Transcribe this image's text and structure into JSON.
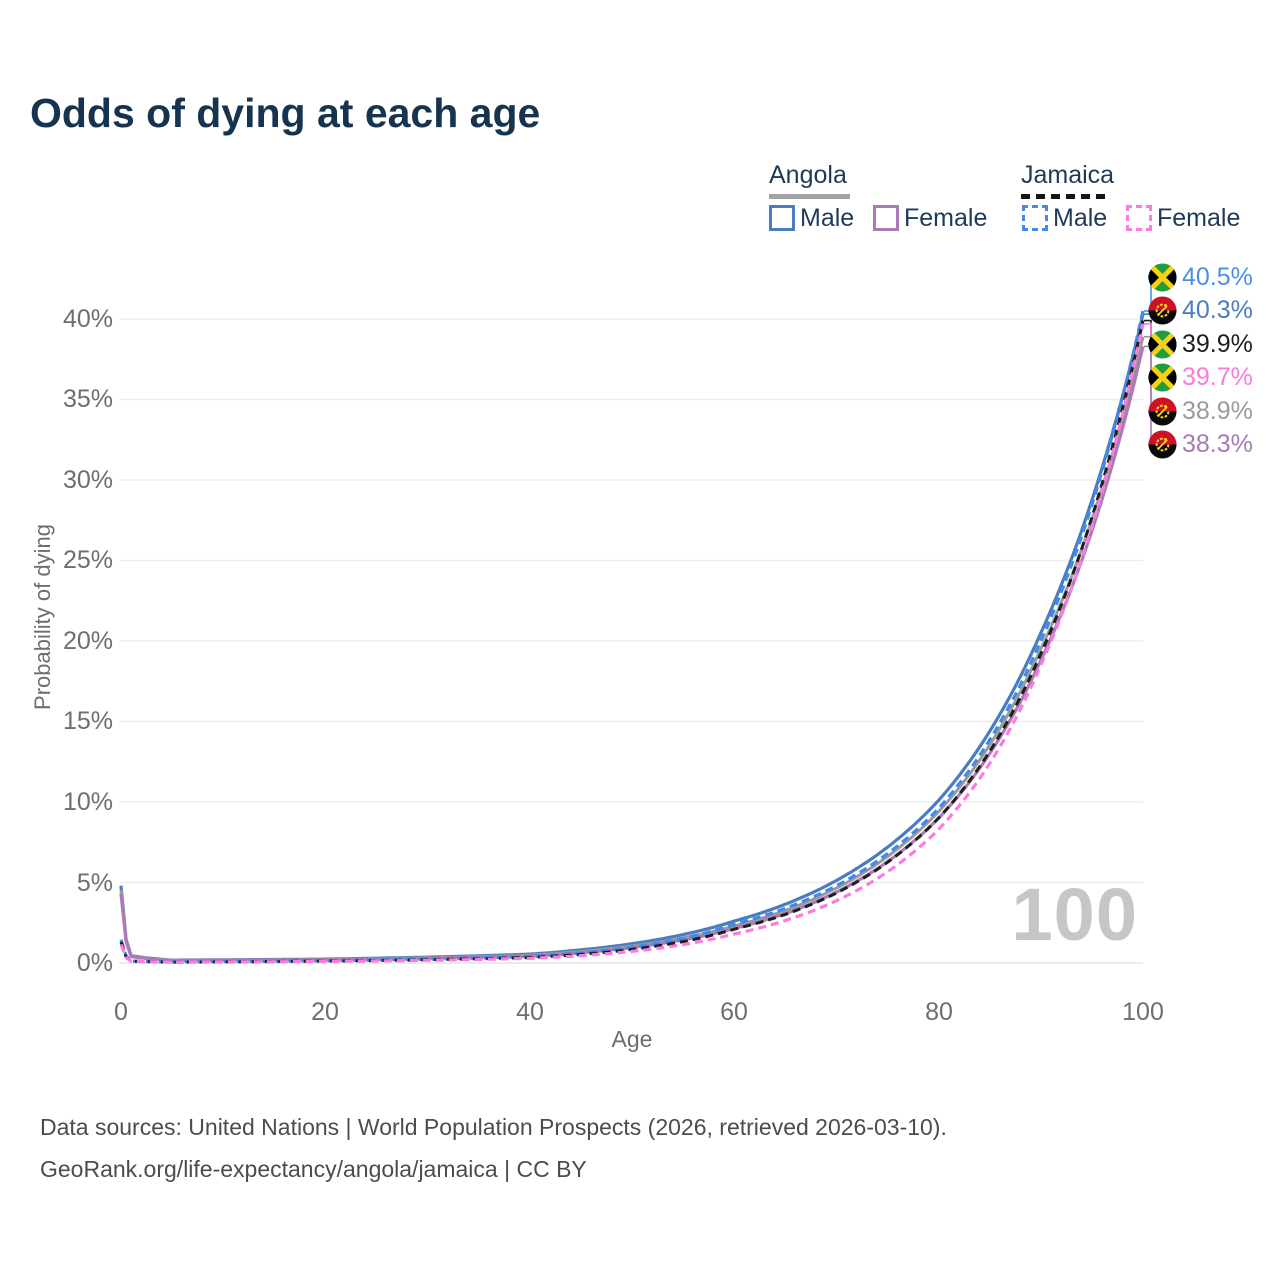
{
  "title": "Odds of dying at each age",
  "legend": {
    "groups": [
      {
        "label": "Angola",
        "underline_color": "#a3a3a3",
        "underline_style": "solid",
        "items": [
          {
            "label": "Male",
            "color": "#4a7dc0",
            "dashed": false
          },
          {
            "label": "Female",
            "color": "#ae79b7",
            "dashed": false
          }
        ]
      },
      {
        "label": "Jamaica",
        "underline_color": "#151515",
        "underline_style": "dashed",
        "items": [
          {
            "label": "Male",
            "color": "#4289ea",
            "dashed": true
          },
          {
            "label": "Female",
            "color": "#fb7ce1",
            "dashed": true
          }
        ]
      }
    ]
  },
  "axes": {
    "y": {
      "title": "Probability of dying"
    },
    "x": {
      "title": "Age"
    }
  },
  "chart_data": {
    "type": "line",
    "title": "Odds of dying at each age",
    "xlabel": "Age",
    "ylabel": "Probability of dying",
    "xlim": [
      0,
      100
    ],
    "ylim_percent": [
      0,
      42
    ],
    "grid": "horizontal",
    "legend_position": "top-right",
    "x_tick_labels": [
      "0",
      "20",
      "40",
      "60",
      "80",
      "100"
    ],
    "y_ticks": [
      "0%",
      "5%",
      "10%",
      "15%",
      "20%",
      "25%",
      "30%",
      "35%",
      "40%"
    ],
    "anchor_ages": [
      0,
      1,
      5,
      20,
      40,
      60,
      80,
      90,
      100
    ],
    "series": [
      {
        "id": "angola-male",
        "name": "Angola Male",
        "color": "#4a7dc0",
        "dashed": false,
        "width": 3.2,
        "values": [
          4.8,
          0.45,
          0.18,
          0.24,
          0.55,
          2.6,
          10.1,
          20.5,
          40.3
        ],
        "end_value": "40.3%"
      },
      {
        "id": "angola-both",
        "name": "Angola",
        "color": "#9b9b9b",
        "dashed": false,
        "width": 3,
        "values": [
          4.55,
          0.42,
          0.17,
          0.21,
          0.48,
          2.3,
          9.4,
          19.5,
          38.9
        ],
        "end_value": "38.9%"
      },
      {
        "id": "angola-female",
        "name": "Angola Female",
        "color": "#ae79b7",
        "dashed": false,
        "width": 3.2,
        "values": [
          4.3,
          0.4,
          0.16,
          0.19,
          0.43,
          2.15,
          9.0,
          18.8,
          38.3
        ],
        "end_value": "38.3%"
      },
      {
        "id": "jamaica-male",
        "name": "Jamaica Male",
        "color": "#4289ea",
        "dashed": true,
        "width": 3.2,
        "values": [
          1.45,
          0.12,
          0.06,
          0.14,
          0.4,
          2.4,
          9.6,
          20.0,
          40.5
        ],
        "end_value": "40.5%"
      },
      {
        "id": "jamaica-both",
        "name": "Jamaica",
        "color": "#1e1e1e",
        "dashed": true,
        "width": 3,
        "values": [
          1.3,
          0.11,
          0.055,
          0.12,
          0.34,
          2.1,
          9.0,
          19.2,
          39.9
        ],
        "end_value": "39.9%"
      },
      {
        "id": "jamaica-female",
        "name": "Jamaica Female",
        "color": "#fb7ce1",
        "dashed": true,
        "width": 3.2,
        "values": [
          1.15,
          0.1,
          0.05,
          0.1,
          0.29,
          1.8,
          8.3,
          18.5,
          39.7
        ],
        "end_value": "39.7%"
      }
    ],
    "end_labels": [
      {
        "flag": "jamaica",
        "series": "jamaica-male",
        "value": "40.5%",
        "pct": 40.5,
        "color": "#4a90e8"
      },
      {
        "flag": "angola",
        "series": "angola-male",
        "value": "40.3%",
        "pct": 40.3,
        "color": "#4a7dc0"
      },
      {
        "flag": "jamaica",
        "series": "jamaica-both",
        "value": "39.9%",
        "pct": 39.9,
        "color": "#1f1f1f"
      },
      {
        "flag": "jamaica",
        "series": "jamaica-female",
        "value": "39.7%",
        "pct": 39.7,
        "color": "#f87ce0"
      },
      {
        "flag": "angola",
        "series": "angola-both",
        "value": "38.9%",
        "pct": 38.9,
        "color": "#9b9b9b"
      },
      {
        "flag": "angola",
        "series": "angola-female",
        "value": "38.3%",
        "pct": 38.3,
        "color": "#a77cb5"
      }
    ],
    "watermark": "100"
  },
  "footer": {
    "line1": "Data sources: United Nations | World Population Prospects (2026, retrieved 2026-03-10).",
    "line2": "GeoRank.org/life-expectancy/angola/jamaica | CC BY"
  }
}
